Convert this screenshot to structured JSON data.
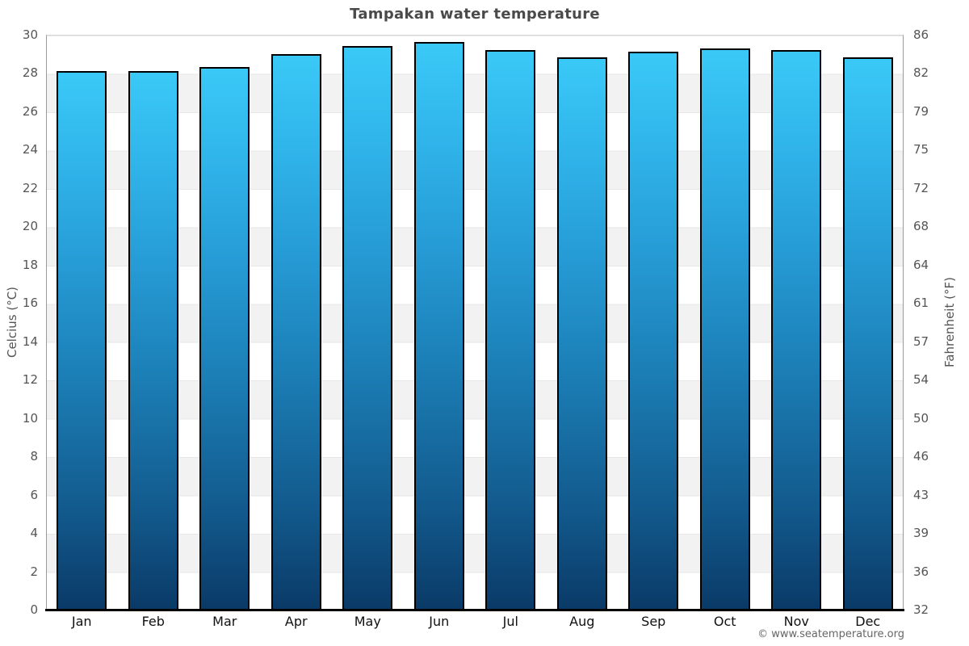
{
  "title": "Tampakan water temperature",
  "footer": {
    "copyright": "© www.seatemperature.org"
  },
  "chart_data": {
    "type": "bar",
    "title": "Tampakan water temperature",
    "categories": [
      "Jan",
      "Feb",
      "Mar",
      "Apr",
      "May",
      "Jun",
      "Jul",
      "Aug",
      "Sep",
      "Oct",
      "Nov",
      "Dec"
    ],
    "values": [
      28.1,
      28.1,
      28.3,
      29.0,
      29.4,
      29.6,
      29.2,
      28.8,
      29.1,
      29.3,
      29.2,
      28.8
    ],
    "series_unit": "°C",
    "ylabel_left": "Celcius (°C)",
    "ylabel_right": "Fahrenheit (°F)",
    "ylim": [
      0,
      30
    ],
    "yticks_celsius": [
      0,
      2,
      4,
      6,
      8,
      10,
      12,
      14,
      16,
      18,
      20,
      22,
      24,
      26,
      28,
      30
    ],
    "yticks_fahrenheit": [
      32,
      36,
      39,
      43,
      46,
      50,
      54,
      57,
      61,
      64,
      68,
      72,
      75,
      79,
      82,
      86
    ],
    "grid": "horizontal-stripes",
    "legend_position": "none",
    "colors": {
      "bar_gradient_top": "#3ac9f7",
      "bar_gradient_bottom": "#0a3a67",
      "bar_border": "#000000",
      "stripe": "#f2f2f2",
      "gridline": "#e7e7e7",
      "title_text": "#4a4a4a",
      "tick_text": "#555555",
      "month_text": "#111111",
      "footer_text": "#666666"
    }
  }
}
